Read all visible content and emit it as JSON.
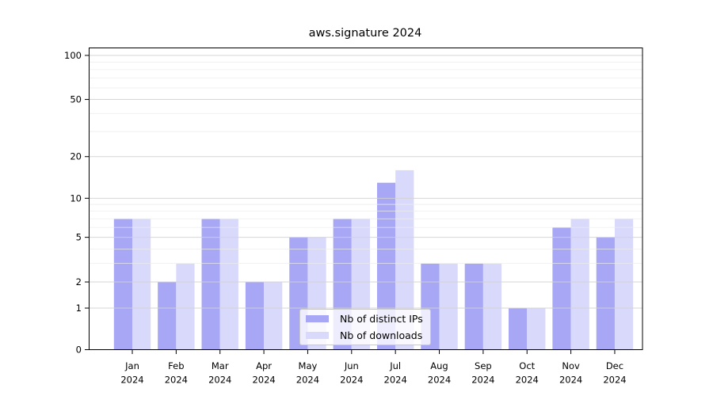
{
  "chart_data": {
    "type": "bar",
    "title": "aws.signature 2024",
    "categories": [
      "Jan",
      "Feb",
      "Mar",
      "Apr",
      "May",
      "Jun",
      "Jul",
      "Aug",
      "Sep",
      "Oct",
      "Nov",
      "Dec"
    ],
    "category_year": "2024",
    "series": [
      {
        "name": "Nb of distinct IPs",
        "color": "#a7a7f6",
        "values": [
          7,
          2,
          7,
          2,
          5,
          7,
          13,
          3,
          3,
          1,
          6,
          5
        ]
      },
      {
        "name": "Nb of downloads",
        "color": "#d9d9fb",
        "values": [
          7,
          3,
          7,
          2,
          5,
          7,
          16,
          3,
          3,
          1,
          7,
          7
        ]
      }
    ],
    "xlabel": "",
    "ylabel": "",
    "yscale": "log1p",
    "ylim": [
      0,
      100
    ],
    "y_ticks_major": [
      0,
      1,
      2,
      5,
      10,
      20,
      50,
      100
    ],
    "y_ticks_minor": [
      3,
      4,
      6,
      7,
      8,
      9,
      30,
      40,
      60,
      70,
      80,
      90
    ],
    "grid": "horizontal",
    "legend_position": "lower-center-inside",
    "colors": {
      "axis": "#000000",
      "grid_major": "#d2d2d2",
      "grid_minor": "#ececec",
      "text": "#000000"
    }
  }
}
